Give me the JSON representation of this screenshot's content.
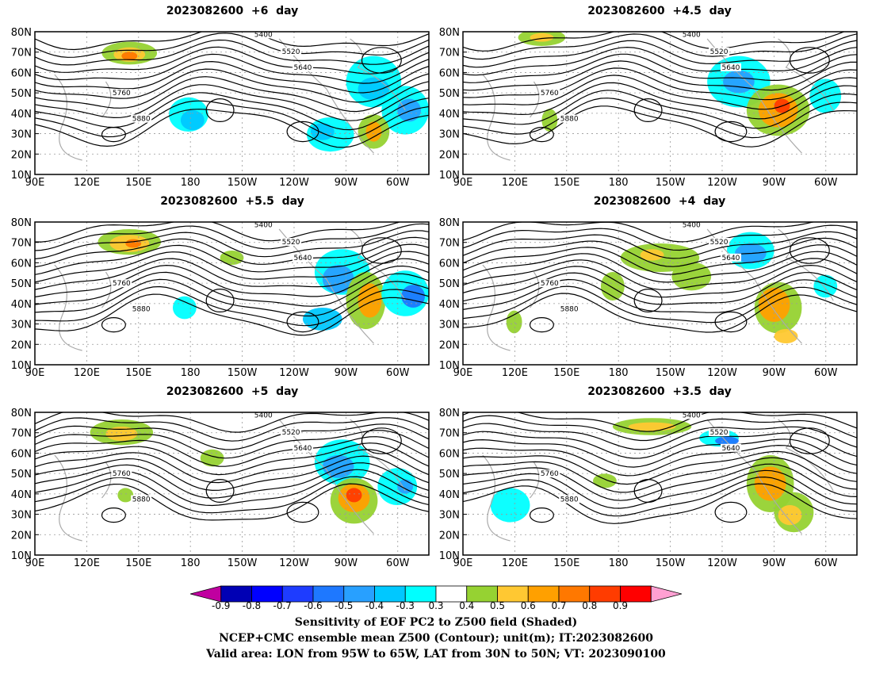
{
  "panels": [
    {
      "title": "2023082600  +6  day",
      "style": 0
    },
    {
      "title": "2023082600  +4.5  day",
      "style": 1
    },
    {
      "title": "2023082600  +5.5  day",
      "style": 2
    },
    {
      "title": "2023082600  +4  day",
      "style": 3
    },
    {
      "title": "2023082600  +5  day",
      "style": 4
    },
    {
      "title": "2023082600  +3.5  day",
      "style": 5
    }
  ],
  "axes": {
    "lon_ticks": [
      "90E",
      "120E",
      "150E",
      "180",
      "150W",
      "120W",
      "90W",
      "60W"
    ],
    "lat_ticks": [
      "80N",
      "70N",
      "60N",
      "50N",
      "40N",
      "30N",
      "20N",
      "10N"
    ]
  },
  "contour_labels": [
    "5400",
    "5520",
    "5640",
    "5760",
    "5880"
  ],
  "colorbar": {
    "labels": [
      "-0.9",
      "-0.8",
      "-0.7",
      "-0.6",
      "-0.5",
      "-0.4",
      "-0.3",
      "0.3",
      "0.4",
      "0.5",
      "0.6",
      "0.7",
      "0.8",
      "0.9"
    ],
    "colors": [
      "#c000a0",
      "#0000b4",
      "#0000ff",
      "#1e3cff",
      "#1e78ff",
      "#28a0ff",
      "#00c8ff",
      "#00ffff",
      "#ffffff",
      "#96d232",
      "#ffc832",
      "#ffa000",
      "#ff7800",
      "#ff3c00",
      "#ff0000",
      "#ffa0d2"
    ]
  },
  "captions": [
    "Sensitivity of EOF PC2 to Z500 field (Shaded)",
    "NCEP+CMC ensemble mean Z500 (Contour); unit(m); IT:2023082600",
    "Valid area: LON from 95W to 65W, LAT from 30N to 50N; VT: 2023090100"
  ]
}
